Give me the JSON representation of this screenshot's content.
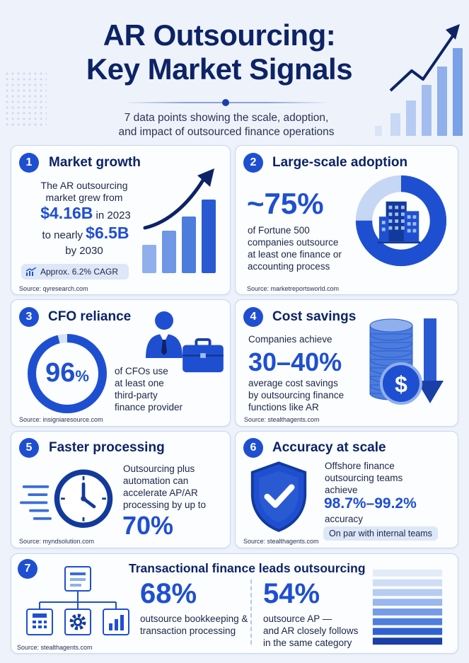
{
  "header": {
    "title_line1": "AR Outsourcing:",
    "title_line2": "Key Market Signals",
    "subtitle_line1": "7 data points showing the scale, adoption,",
    "subtitle_line2": "and impact of outsourced finance operations"
  },
  "cards": [
    {
      "number": "1",
      "title": "Market growth",
      "text_line1": "The AR outsourcing",
      "text_line2": "market grew from",
      "value_start": "$4.16B",
      "year_start": " in 2023",
      "to_prefix": "to nearly ",
      "value_end": "$6.5B",
      "year_end": "by 2030",
      "badge": "Approx. 6.2% CAGR",
      "source": "Source: qyresearch.com",
      "icons": [
        "bar-growth-arrow-icon",
        "chart-trend-icon"
      ]
    },
    {
      "number": "2",
      "title": "Large-scale adoption",
      "stat": "~75%",
      "text_lines": [
        "of Fortune 500",
        "companies outsource",
        "at least one finance or",
        "accounting process"
      ],
      "source": "Source: marketreportsworld.com",
      "donut_fraction": 0.75,
      "icons": [
        "office-buildings-icon"
      ]
    },
    {
      "number": "3",
      "title": "CFO reliance",
      "stat_value": "96",
      "stat_unit": "%",
      "ring_fraction": 0.96,
      "text_lines": [
        "of CFOs use",
        "at least one",
        "third-party",
        "finance provider"
      ],
      "source": "Source: insigniaresource.com",
      "icons": [
        "businessman-icon",
        "briefcase-icon"
      ]
    },
    {
      "number": "4",
      "title": "Cost savings",
      "text_top": "Companies achieve",
      "stat": "30–40%",
      "text_lines": [
        "average cost savings",
        "by outsourcing finance",
        "functions like AR"
      ],
      "source": "Source: stealthagents.com",
      "icons": [
        "coin-stack-icon",
        "dollar-coin-icon",
        "down-arrow-icon"
      ]
    },
    {
      "number": "5",
      "title": "Faster processing",
      "text_lines": [
        "Outsourcing plus",
        "automation can",
        "accelerate AP/AR",
        "processing by up to"
      ],
      "stat": "70%",
      "source": "Source: myndsolution.com",
      "icons": [
        "fast-clock-icon"
      ]
    },
    {
      "number": "6",
      "title": "Accuracy at scale",
      "text_lines": [
        "Offshore finance",
        "outsourcing teams",
        "achieve"
      ],
      "stat": "98.7%–99.2%",
      "text_bottom": "accuracy",
      "badge": "On par with internal teams",
      "source": "Source: stealthagents.com",
      "icons": [
        "shield-check-icon"
      ]
    },
    {
      "number": "7",
      "title": "Transactional finance leads outsourcing",
      "stat_a": "68%",
      "text_a": [
        "outsource bookkeeping &",
        "transaction processing"
      ],
      "stat_b": "54%",
      "text_b": [
        "outsource AP —",
        "and AR closely follows",
        "in the same category"
      ],
      "source": "Source: stealthagents.com",
      "icons": [
        "document-icon",
        "calculator-icon",
        "gear-icon",
        "bar-chart-icon",
        "stacked-layers-icon"
      ]
    }
  ],
  "colors": {
    "primary": "#1f4fd1",
    "navy": "#0d2366",
    "background": "#eef3fb",
    "card_border": "#c9d7ef",
    "light_blue": "#a9c2f2"
  }
}
